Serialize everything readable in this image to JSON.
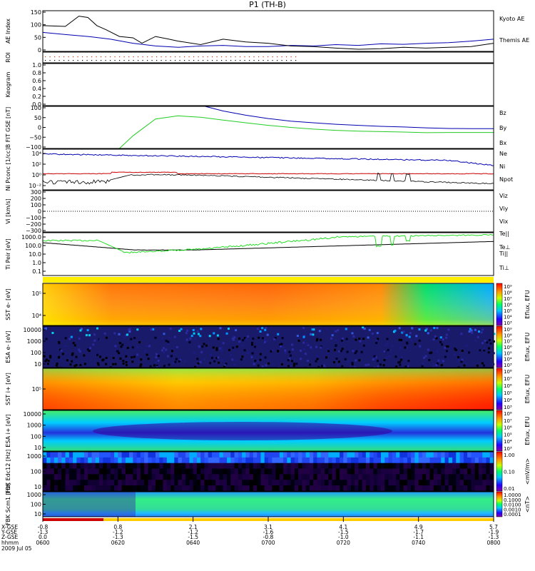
{
  "title": "P1 (TH-B)",
  "chart_data": {
    "type": "line",
    "panels": [
      {
        "id": "ae",
        "ylabel": "AE Index",
        "yticks": [
          "150",
          "100",
          "50",
          "0"
        ],
        "legend": [
          {
            "label": "Kyoto AE",
            "color": "#0000b0"
          },
          {
            "label": "Themis AE",
            "color": "#000000"
          }
        ],
        "series": [
          {
            "name": "Kyoto AE",
            "color": "#0000b0",
            "x": [
              0,
              0.05,
              0.1,
              0.15,
              0.2,
              0.25,
              0.3,
              0.35,
              0.4,
              0.45,
              0.5,
              0.55,
              0.6,
              0.65,
              0.7,
              0.75,
              0.8,
              0.85,
              0.9,
              0.95,
              1.0
            ],
            "y": [
              70,
              62,
              55,
              45,
              30,
              20,
              15,
              20,
              22,
              18,
              18,
              22,
              20,
              25,
              22,
              28,
              26,
              30,
              32,
              38,
              45
            ]
          },
          {
            "name": "Themis AE",
            "color": "#000000",
            "x": [
              0,
              0.05,
              0.08,
              0.1,
              0.12,
              0.14,
              0.17,
              0.2,
              0.22,
              0.25,
              0.28,
              0.3,
              0.35,
              0.4,
              0.45,
              0.5,
              0.55,
              0.6,
              0.65,
              0.7,
              0.75,
              0.8,
              0.85,
              0.9,
              0.95,
              1.0
            ],
            "y": [
              95,
              92,
              130,
              125,
              95,
              80,
              55,
              50,
              30,
              55,
              45,
              38,
              25,
              45,
              35,
              30,
              20,
              18,
              12,
              8,
              10,
              15,
              12,
              15,
              18,
              30
            ]
          }
        ]
      },
      {
        "id": "roi",
        "ylabel": "ROI"
      },
      {
        "id": "keogram",
        "ylabel": "Keogram",
        "yticks": [
          "1.0",
          "0.8",
          "0.6",
          "0.4",
          "0.2",
          "0.0"
        ]
      },
      {
        "id": "bfield",
        "ylabel": "B FIT GSE [nT]",
        "yticks": [
          "100",
          "50",
          "0",
          "−50",
          "−100"
        ],
        "legend": [
          {
            "label": "Bz",
            "color": "#cc0000"
          },
          {
            "label": "By",
            "color": "#00bb00"
          },
          {
            "label": "Bx",
            "color": "#0000b0"
          }
        ],
        "series": [
          {
            "name": "By",
            "color": "#22cc22",
            "x": [
              0.17,
              0.2,
              0.25,
              0.3,
              0.35,
              0.4,
              0.45,
              0.5,
              0.55,
              0.6,
              0.65,
              0.7,
              0.75,
              0.8,
              0.85,
              0.9,
              0.95,
              1.0
            ],
            "y": [
              -100,
              -40,
              40,
              55,
              48,
              35,
              22,
              10,
              0,
              -8,
              -14,
              -18,
              -20,
              -22,
              -25,
              -24,
              -24,
              -24
            ]
          },
          {
            "name": "Bx",
            "color": "#0000b0",
            "x": [
              0.36,
              0.4,
              0.45,
              0.5,
              0.55,
              0.6,
              0.65,
              0.7,
              0.75,
              0.8,
              0.85,
              0.9,
              0.95,
              1.0
            ],
            "y": [
              100,
              78,
              58,
              42,
              30,
              22,
              15,
              10,
              5,
              2,
              -2,
              -5,
              -6,
              -6
            ]
          }
        ]
      },
      {
        "id": "density",
        "ylabel": "Ni Pconc [1/cc]",
        "yticks": [
          "10⁴",
          "10²",
          "10⁰",
          "10⁻²"
        ],
        "legend": [
          {
            "label": "Ne",
            "color": "#cc0000"
          },
          {
            "label": "Ni",
            "color": "#000000"
          },
          {
            "label": "Npot",
            "color": "#0000b0"
          }
        ]
      },
      {
        "id": "velocity",
        "ylabel": "Vi [km/s]",
        "yticks": [
          "300",
          "200",
          "100",
          "0",
          "−100",
          "−200",
          "−300"
        ],
        "legend": [
          {
            "label": "Viz",
            "color": "#cc0000"
          },
          {
            "label": "Viy",
            "color": "#00bb00"
          },
          {
            "label": "Vix",
            "color": "#0000b0"
          }
        ]
      },
      {
        "id": "temperature",
        "ylabel": "Ti Peir [eV]",
        "yticks": [
          "1000.0",
          "100.0",
          "10.0",
          "1.0",
          "0.1"
        ],
        "legend": [
          {
            "label": "Te||",
            "color": "#000000"
          },
          {
            "label": "Te⊥",
            "color": "#cc0000"
          },
          {
            "label": "Ti||",
            "color": "#00bb00"
          },
          {
            "label": "Ti⊥",
            "color": "#0000b0"
          }
        ]
      },
      {
        "id": "sst_e",
        "ylabel": "SST e- [eV]",
        "yticks": [
          "10⁵",
          "10⁴"
        ],
        "cbar_label": "Eflux, EFU",
        "cbar_ticks": [
          "10⁹",
          "10⁸",
          "10⁷",
          "10⁶",
          "10⁵",
          "10⁴",
          "10³"
        ]
      },
      {
        "id": "esa_e",
        "ylabel": "ESA e- [eV]",
        "yticks": [
          "10000",
          "1000",
          "100",
          "10"
        ],
        "cbar_label": "Eflux, EFU",
        "cbar_ticks": [
          "10⁹",
          "10⁸",
          "10⁷",
          "10⁶",
          "10⁵",
          "10⁴",
          "10³"
        ]
      },
      {
        "id": "sst_i",
        "ylabel": "SST i+ [eV]",
        "yticks": [
          "10⁵"
        ],
        "cbar_label": "Eflux, EFU",
        "cbar_ticks": [
          "10⁸",
          "10⁷",
          "10⁶",
          "10⁵",
          "10⁴",
          "10³"
        ]
      },
      {
        "id": "esa_i",
        "ylabel": "ESA i+ [eV]",
        "yticks": [
          "10000",
          "1000",
          "100",
          "10"
        ],
        "cbar_label": "Eflux, EFU",
        "cbar_ticks": [
          "10⁸",
          "10⁷",
          "10⁶",
          "10⁵",
          "10⁴",
          "10³"
        ]
      },
      {
        "id": "fbk_e",
        "ylabel": "FBK Edc12 [Hz]",
        "yticks": [
          "1000",
          "100",
          "10"
        ],
        "cbar_label": "<mV/m>",
        "cbar_ticks": [
          "1.00",
          "0.10",
          "0.01"
        ]
      },
      {
        "id": "fbk_b",
        "ylabel": "FBK Scm1 [Hz]",
        "yticks": [
          "1000",
          "100",
          "10"
        ],
        "cbar_label": "<nT>",
        "cbar_ticks": [
          "1.0000",
          "0.1000",
          "0.0100",
          "0.0010",
          "0.0001"
        ]
      }
    ],
    "xaxis": {
      "row_labels": [
        "X-GSE",
        "Y-GSE",
        "Z-GSE",
        "hhmm",
        "2009 Jul 05"
      ],
      "ticks": [
        {
          "values": [
            "-0.8",
            "-1.3",
            "0.0",
            "0600"
          ]
        },
        {
          "values": [
            "0.8",
            "-1.2",
            "-1.3",
            "0620"
          ]
        },
        {
          "values": [
            "2.1",
            "-1.2",
            "-1.5",
            "0640"
          ]
        },
        {
          "values": [
            "3.1",
            "-1.6",
            "-0.8",
            "0700"
          ]
        },
        {
          "values": [
            "4.1",
            "-1.5",
            "-1.0",
            "0720"
          ]
        },
        {
          "values": [
            "4.9",
            "-1.7",
            "-1.1",
            "0740"
          ]
        },
        {
          "values": [
            "5.7",
            "-1.9",
            "-1.3",
            "0800"
          ]
        }
      ]
    }
  }
}
